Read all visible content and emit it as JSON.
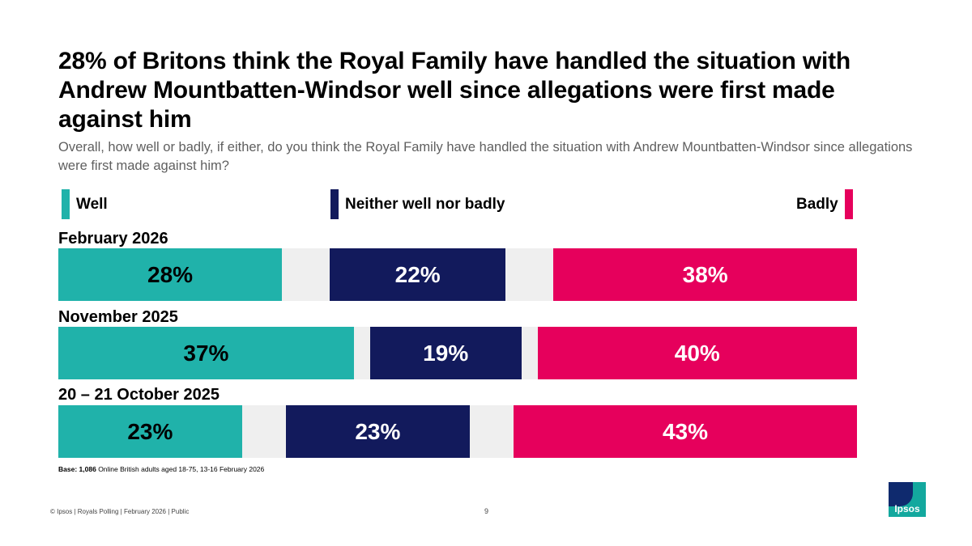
{
  "header": {
    "title": "28% of Britons think the Royal Family have handled the situation with Andrew Mountbatten-Windsor well since allegations were first made against him",
    "subtitle": "Overall, how well or badly, if either, do you think the Royal Family have handled the situation with Andrew Mountbatten-Windsor since allegations were first made against him?"
  },
  "legend": {
    "well": "Well",
    "neither": "Neither well nor badly",
    "badly": "Badly"
  },
  "colors": {
    "well": "#20b2aa",
    "neither": "#121a5c",
    "badly": "#e6005c",
    "track": "#efefef",
    "well_text": "#000000",
    "neither_text": "#ffffff",
    "badly_text": "#ffffff"
  },
  "chart_data": {
    "type": "bar",
    "stacked": true,
    "orientation": "horizontal",
    "title": "28% of Britons think the Royal Family have handled the situation with Andrew Mountbatten-Windsor well since allegations were first made against him",
    "categories": [
      "February 2026",
      "November 2025",
      "20 – 21 October 2025"
    ],
    "series": [
      {
        "name": "Well",
        "values": [
          28,
          37,
          23
        ],
        "labels": [
          "28%",
          "37%",
          "23%"
        ]
      },
      {
        "name": "Neither well nor badly",
        "values": [
          22,
          19,
          23
        ],
        "labels": [
          "22%",
          "19%",
          "23%"
        ]
      },
      {
        "name": "Badly",
        "values": [
          38,
          40,
          43
        ],
        "labels": [
          "38%",
          "40%",
          "43%"
        ]
      }
    ],
    "xlim": [
      0,
      100
    ],
    "legend_position": "top"
  },
  "footer": {
    "base_bold": "Base:",
    "base_count": "1,086",
    "base_text": "Online British adults aged 18-75, 13-16 February 2026",
    "copyright": "© Ipsos | Royals Polling | February 2026 | Public",
    "page_number": "9",
    "logo_text": "Ipsos"
  }
}
